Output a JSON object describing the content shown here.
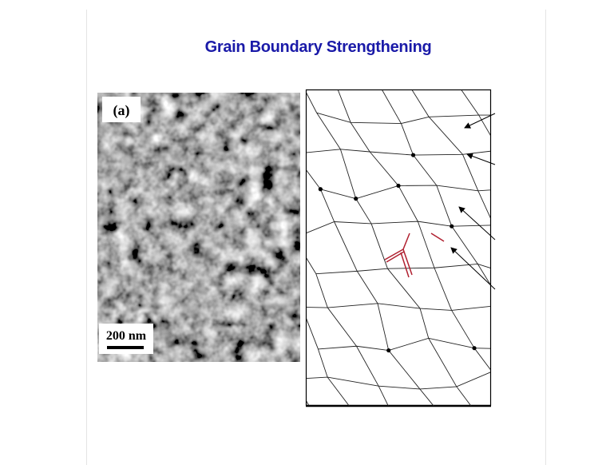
{
  "header": {
    "title": "Grain Boundary Strengthening"
  },
  "micrograph": {
    "panel_label": "(a)",
    "scale_label": "200 nm"
  }
}
